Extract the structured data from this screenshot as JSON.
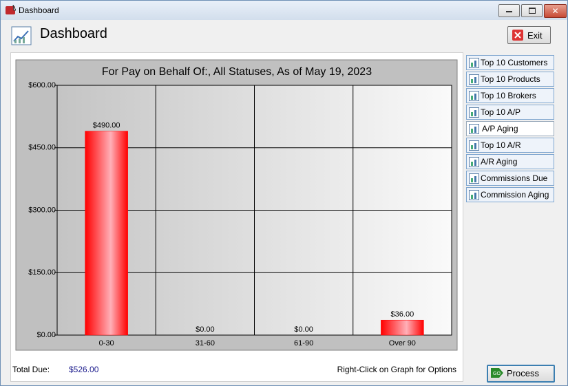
{
  "window": {
    "title": "Dashboard"
  },
  "header": {
    "title": "Dashboard"
  },
  "exit_button": "Exit",
  "nav_buttons": [
    "Top 10 Customers",
    "Top 10 Products",
    "Top 10 Brokers",
    "Top 10 A/P",
    "A/P Aging",
    "Top 10 A/R",
    "A/R Aging",
    "Commissions Due",
    "Commission Aging"
  ],
  "chart_data": {
    "type": "bar",
    "title": "For Pay on Behalf Of:, All Statuses, As of May 19, 2023",
    "categories": [
      "0-30",
      "31-60",
      "61-90",
      "Over 90"
    ],
    "values": [
      490,
      0,
      0,
      36
    ],
    "value_labels": [
      "$490.00",
      "$0.00",
      "$0.00",
      "$36.00"
    ],
    "color": "#ff0000",
    "ylim": [
      0,
      600
    ],
    "yticks": [
      {
        "value": 0,
        "label": "$0.00"
      },
      {
        "value": 150,
        "label": "$150.00"
      },
      {
        "value": 300,
        "label": "$300.00"
      },
      {
        "value": 450,
        "label": "$450.00"
      },
      {
        "value": 600,
        "label": "$600.00"
      }
    ],
    "grid": true
  },
  "footer": {
    "total_label": "Total Due:",
    "total_value": "$526.00",
    "hint": "Right-Click on Graph for Options"
  },
  "process_button": "Process"
}
